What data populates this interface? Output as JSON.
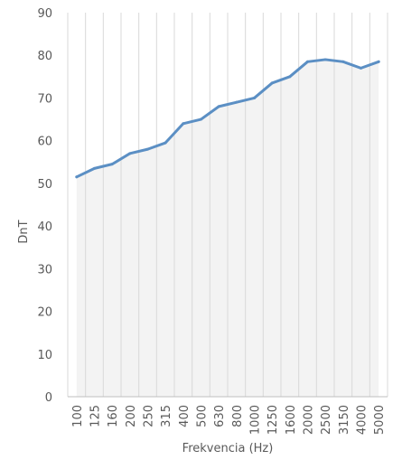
{
  "chart_data": {
    "type": "area",
    "title": "",
    "xlabel": "Frekvencia (Hz)",
    "ylabel": "DnT",
    "categories": [
      "100",
      "125",
      "160",
      "200",
      "250",
      "315",
      "400",
      "500",
      "630",
      "800",
      "1000",
      "1250",
      "1600",
      "2000",
      "2500",
      "3150",
      "4000",
      "5000"
    ],
    "series": [
      {
        "values": [
          51.5,
          53.5,
          54.5,
          57,
          58,
          59.5,
          64,
          65,
          68,
          69,
          70,
          73.5,
          75,
          78.5,
          79,
          78.5,
          77,
          78.5
        ]
      }
    ],
    "ylim": [
      0,
      90
    ],
    "yticks": [
      0,
      10,
      20,
      30,
      40,
      50,
      60,
      70,
      80,
      90
    ],
    "grid": "vertical",
    "legend": "none",
    "colors": {
      "line": "#5b8fc4",
      "fill": "#f3f3f3",
      "grid": "#d9d9d9",
      "axis": "#bfbfbf",
      "text": "#595959"
    }
  }
}
